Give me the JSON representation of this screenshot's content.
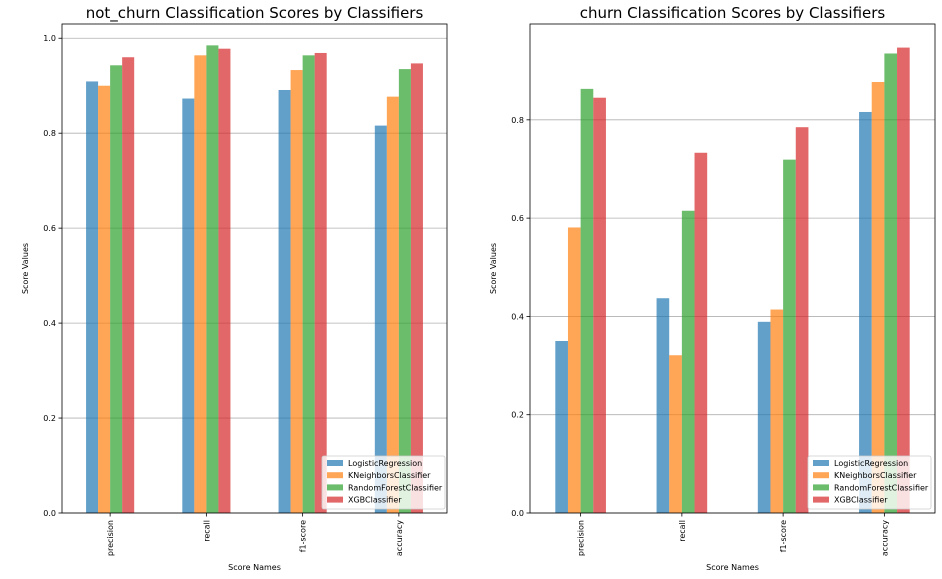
{
  "legend_placement": "lower right",
  "grid": "y",
  "colors": {
    "LogisticRegression": "#1f77b4",
    "KNeighborsClassifier": "#ff7f0e",
    "RandomForestClassifier": "#2ca02c",
    "XGBClassifier": "#d62728"
  },
  "chart_data": [
    {
      "type": "bar",
      "title": "not_churn Classification Scores by Classifiers",
      "xlabel": "Score Names",
      "ylabel": "Score Values",
      "categories": [
        "precision",
        "recall",
        "f1-score",
        "accuracy"
      ],
      "ylim": [
        0,
        1.03
      ],
      "yticks": [
        "0.0",
        "0.2",
        "0.4",
        "0.6",
        "0.8",
        "1.0"
      ],
      "series": [
        {
          "name": "LogisticRegression",
          "values": [
            0.909,
            0.873,
            0.891,
            0.816
          ]
        },
        {
          "name": "KNeighborsClassifier",
          "values": [
            0.9,
            0.964,
            0.933,
            0.877
          ]
        },
        {
          "name": "RandomForestClassifier",
          "values": [
            0.943,
            0.985,
            0.964,
            0.935
          ]
        },
        {
          "name": "XGBClassifier",
          "values": [
            0.96,
            0.978,
            0.969,
            0.947
          ]
        }
      ]
    },
    {
      "type": "bar",
      "title": "churn Classification Scores by Classifiers",
      "xlabel": "Score Names",
      "ylabel": "Score Values",
      "categories": [
        "precision",
        "recall",
        "f1-score",
        "accuracy"
      ],
      "ylim": [
        0,
        0.995
      ],
      "yticks": [
        "0.0",
        "0.2",
        "0.4",
        "0.6",
        "0.8"
      ],
      "series": [
        {
          "name": "LogisticRegression",
          "values": [
            0.35,
            0.437,
            0.389,
            0.816
          ]
        },
        {
          "name": "KNeighborsClassifier",
          "values": [
            0.581,
            0.321,
            0.414,
            0.877
          ]
        },
        {
          "name": "RandomForestClassifier",
          "values": [
            0.863,
            0.615,
            0.719,
            0.935
          ]
        },
        {
          "name": "XGBClassifier",
          "values": [
            0.845,
            0.733,
            0.785,
            0.947
          ]
        }
      ]
    }
  ]
}
